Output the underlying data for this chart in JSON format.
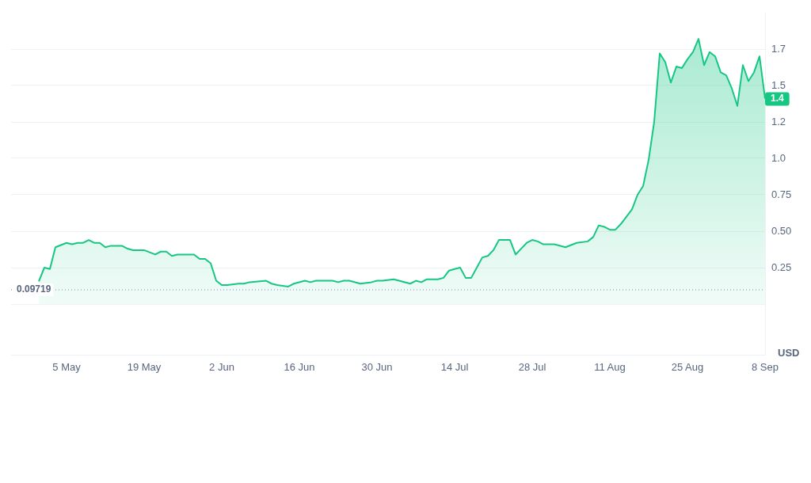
{
  "chart_data": {
    "type": "area",
    "ylabel": "USD",
    "color": "#16c784",
    "x": [
      "--04-30",
      "--05-01",
      "--05-02",
      "--05-03",
      "--05-05",
      "--05-06",
      "--05-07",
      "--05-08",
      "--05-09",
      "--05-10",
      "--05-11",
      "--05-12",
      "--05-13",
      "--05-15",
      "--05-16",
      "--05-17",
      "--05-19",
      "--05-21",
      "--05-22",
      "--05-23",
      "--05-24",
      "--05-25",
      "--05-28",
      "--05-29",
      "--05-30",
      "--05-31",
      "--06-01",
      "--06-02",
      "--06-03",
      "--06-05",
      "--06-06",
      "--06-07",
      "--06-10",
      "--06-11",
      "--06-12",
      "--06-14",
      "--06-15",
      "--06-17",
      "--06-18",
      "--06-19",
      "--06-22",
      "--06-23",
      "--06-24",
      "--06-25",
      "--06-27",
      "--06-29",
      "--06-30",
      "--07-01",
      "--07-03",
      "--07-04",
      "--07-06",
      "--07-07",
      "--07-08",
      "--07-09",
      "--07-11",
      "--07-12",
      "--07-13",
      "--07-14",
      "--07-15",
      "--07-16",
      "--07-17",
      "--07-18",
      "--07-19",
      "--07-20",
      "--07-21",
      "--07-22",
      "--07-24",
      "--07-25",
      "--07-26",
      "--07-27",
      "--07-28",
      "--07-29",
      "--07-30",
      "--07-31",
      "--08-01",
      "--08-03",
      "--08-05",
      "--08-07",
      "--08-08",
      "--08-09",
      "--08-10",
      "--08-11",
      "--08-12",
      "--08-13",
      "--08-14",
      "--08-15",
      "--08-16",
      "--08-17",
      "--08-18",
      "--08-19",
      "--08-20",
      "--08-21",
      "--08-22",
      "--08-23",
      "--08-24",
      "--08-25",
      "--08-26",
      "--08-27",
      "--08-28",
      "--08-29",
      "--08-30",
      "--08-31",
      "--09-01",
      "--09-02",
      "--09-03",
      "--09-04",
      "--09-05",
      "--09-06",
      "--09-07",
      "--09-08"
    ],
    "values": [
      0.156,
      0.25,
      0.24,
      0.39,
      0.42,
      0.41,
      0.42,
      0.42,
      0.44,
      0.42,
      0.42,
      0.39,
      0.4,
      0.4,
      0.38,
      0.37,
      0.37,
      0.34,
      0.36,
      0.36,
      0.33,
      0.34,
      0.34,
      0.31,
      0.31,
      0.28,
      0.16,
      0.13,
      0.13,
      0.14,
      0.14,
      0.15,
      0.16,
      0.14,
      0.13,
      0.12,
      0.14,
      0.16,
      0.15,
      0.16,
      0.16,
      0.15,
      0.16,
      0.16,
      0.14,
      0.15,
      0.16,
      0.16,
      0.17,
      0.16,
      0.14,
      0.16,
      0.15,
      0.17,
      0.17,
      0.18,
      0.23,
      0.24,
      0.25,
      0.18,
      0.18,
      0.25,
      0.32,
      0.33,
      0.37,
      0.44,
      0.44,
      0.34,
      0.38,
      0.42,
      0.44,
      0.43,
      0.41,
      0.41,
      0.41,
      0.39,
      0.42,
      0.43,
      0.46,
      0.54,
      0.53,
      0.51,
      0.51,
      0.55,
      0.6,
      0.65,
      0.75,
      0.81,
      0.99,
      1.25,
      1.72,
      1.66,
      1.52,
      1.63,
      1.62,
      1.68,
      1.73,
      1.82,
      1.64,
      1.73,
      1.7,
      1.59,
      1.57,
      1.48,
      1.36,
      1.64,
      1.53,
      1.59,
      1.7,
      1.41
    ],
    "xlim": [
      "--04-25",
      "--09-08"
    ],
    "xticks": [
      {
        "value": "--05-05",
        "label": "5 May"
      },
      {
        "value": "--05-19",
        "label": "19 May"
      },
      {
        "value": "--06-02",
        "label": "2 Jun"
      },
      {
        "value": "--06-16",
        "label": "16 Jun"
      },
      {
        "value": "--06-30",
        "label": "30 Jun"
      },
      {
        "value": "--07-14",
        "label": "14 Jul"
      },
      {
        "value": "--07-28",
        "label": "28 Jul"
      },
      {
        "value": "--08-11",
        "label": "11 Aug"
      },
      {
        "value": "--08-25",
        "label": "25 Aug"
      },
      {
        "value": "--09-08",
        "label": "8 Sep"
      }
    ],
    "ylim": [
      -0.35,
      2.0
    ],
    "yticks": [
      {
        "value": 0,
        "label": null
      },
      0.25,
      {
        "value": 0.5,
        "label": "0.50"
      },
      0.75,
      {
        "value": 1,
        "label": "1.0"
      },
      {
        "value": 1.25,
        "label": "1.2"
      },
      1.5,
      {
        "value": 1.75,
        "label": "1.7"
      }
    ],
    "ref_lines": [
      {
        "axis": "y",
        "value": 0.09719,
        "label": "0.09719",
        "color": "#a6b0c3",
        "line_style": "dotted"
      }
    ],
    "annotations": [
      {
        "text": "1.4",
        "x": "--09-08",
        "y": 1.41
      }
    ],
    "grid": "y",
    "legend": false,
    "marker": "none",
    "line_style": "solid"
  }
}
